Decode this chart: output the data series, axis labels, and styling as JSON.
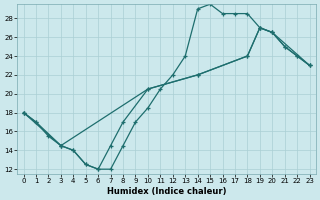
{
  "xlabel": "Humidex (Indice chaleur)",
  "xlim": [
    -0.5,
    23.5
  ],
  "ylim": [
    11.5,
    29.5
  ],
  "yticks": [
    12,
    14,
    16,
    18,
    20,
    22,
    24,
    26,
    28
  ],
  "xticks": [
    0,
    1,
    2,
    3,
    4,
    5,
    6,
    7,
    8,
    9,
    10,
    11,
    12,
    13,
    14,
    15,
    16,
    17,
    18,
    19,
    20,
    21,
    22,
    23
  ],
  "background_color": "#cce8ec",
  "grid_color": "#aacfd4",
  "line_color": "#1e6e6e",
  "line1_x": [
    0,
    1,
    2,
    3,
    4,
    5,
    6,
    7,
    8,
    9,
    10,
    11,
    12,
    13,
    14,
    15,
    16,
    17,
    18,
    19,
    20,
    21,
    22,
    23
  ],
  "line1_y": [
    18.0,
    17.0,
    15.5,
    14.5,
    14.0,
    12.5,
    12.0,
    12.0,
    14.5,
    17.0,
    18.5,
    20.5,
    22.0,
    24.0,
    29.0,
    29.5,
    28.5,
    28.5,
    28.5,
    27.0,
    26.5,
    25.0,
    24.0,
    23.0
  ],
  "line2_x": [
    0,
    1,
    3,
    4,
    5,
    6,
    7,
    8,
    10,
    14,
    18,
    19,
    20,
    21,
    22,
    23
  ],
  "line2_y": [
    18.0,
    17.0,
    14.5,
    14.0,
    12.5,
    12.0,
    14.5,
    17.0,
    20.5,
    22.0,
    24.0,
    27.0,
    26.5,
    25.0,
    24.0,
    23.0
  ],
  "line3_x": [
    0,
    3,
    10,
    14,
    18,
    19,
    20,
    23
  ],
  "line3_y": [
    18.0,
    14.5,
    20.5,
    22.0,
    24.0,
    27.0,
    26.5,
    23.0
  ]
}
